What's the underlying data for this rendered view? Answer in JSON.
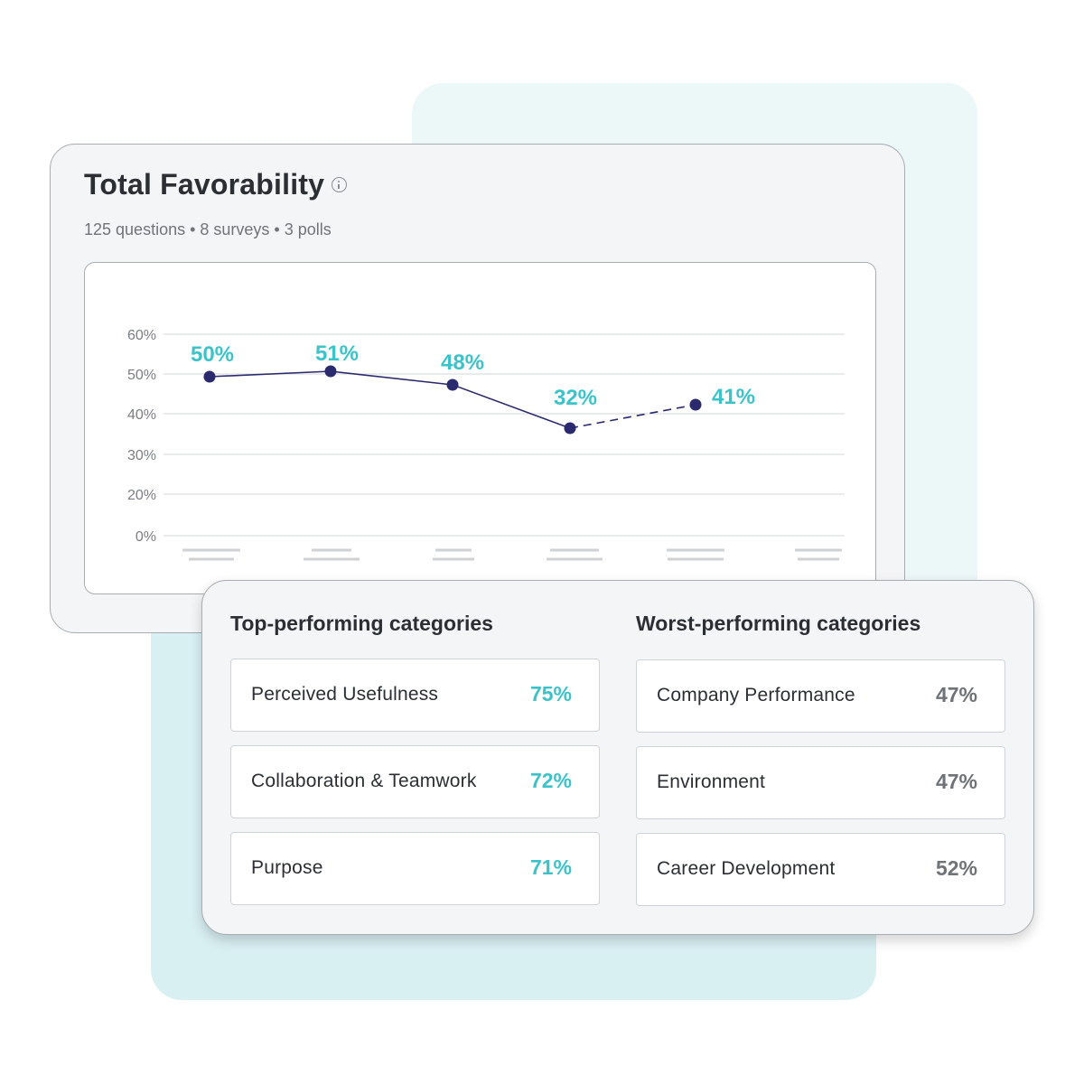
{
  "colors": {
    "accent": "#3cc3c9",
    "line": "#2b2a6e",
    "grid": "#dcdde0",
    "muted_value": "#6f7377"
  },
  "favorability": {
    "title": "Total Favorability",
    "info_icon": "info-circle-icon",
    "subtitle": "125 questions • 8 surveys • 3 polls"
  },
  "chart_data": {
    "type": "line",
    "title": "",
    "xlabel": "",
    "ylabel": "",
    "ylim": [
      0,
      60
    ],
    "y_ticks": [
      "0%",
      "20%",
      "30%",
      "40%",
      "50%",
      "60%"
    ],
    "x_tick_labels_hidden": true,
    "x": [
      1,
      2,
      3,
      4,
      5
    ],
    "values": [
      50,
      51,
      48,
      32,
      41
    ],
    "data_labels": [
      "50%",
      "51%",
      "48%",
      "32%",
      "41%"
    ],
    "last_segment_dashed": true,
    "grid": true
  },
  "top": {
    "heading": "Top-performing categories",
    "items": [
      {
        "name": "Perceived Usefulness",
        "value": "75%"
      },
      {
        "name": "Collaboration & Teamwork",
        "value": "72%"
      },
      {
        "name": "Purpose",
        "value": "71%"
      }
    ]
  },
  "worst": {
    "heading": "Worst-performing categories",
    "items": [
      {
        "name": "Company Performance",
        "value": "47%"
      },
      {
        "name": "Environment",
        "value": "47%"
      },
      {
        "name": "Career Development",
        "value": "52%"
      }
    ]
  }
}
